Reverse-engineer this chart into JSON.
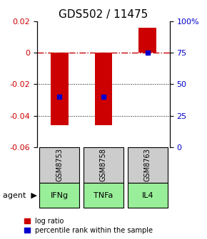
{
  "title": "GDS502 / 11475",
  "samples": [
    "GSM8753",
    "GSM8758",
    "GSM8763"
  ],
  "agents": [
    "IFNg",
    "TNFa",
    "IL4"
  ],
  "log_ratios": [
    -0.046,
    -0.046,
    0.016
  ],
  "percentile_ranks": [
    0.4,
    0.4,
    0.75
  ],
  "ylim_left": [
    -0.06,
    0.02
  ],
  "ylim_right": [
    0,
    1.0
  ],
  "yticks_left": [
    0.02,
    0,
    -0.02,
    -0.04,
    -0.06
  ],
  "yticks_right": [
    1.0,
    0.75,
    0.5,
    0.25,
    0.0
  ],
  "ytick_labels_left": [
    "0.02",
    "0",
    "-0.02",
    "-0.04",
    "-0.06"
  ],
  "ytick_labels_right": [
    "100%",
    "75",
    "50",
    "25",
    "0"
  ],
  "bar_color": "#cc0000",
  "square_color": "#0000cc",
  "agent_bg_color": "#99ee99",
  "sample_bg_color": "#cccccc",
  "zero_line_color": "#cc0000",
  "grid_color": "#000000",
  "title_fontsize": 11,
  "tick_fontsize": 8,
  "label_fontsize": 8,
  "legend_fontsize": 7,
  "bar_width": 0.4
}
